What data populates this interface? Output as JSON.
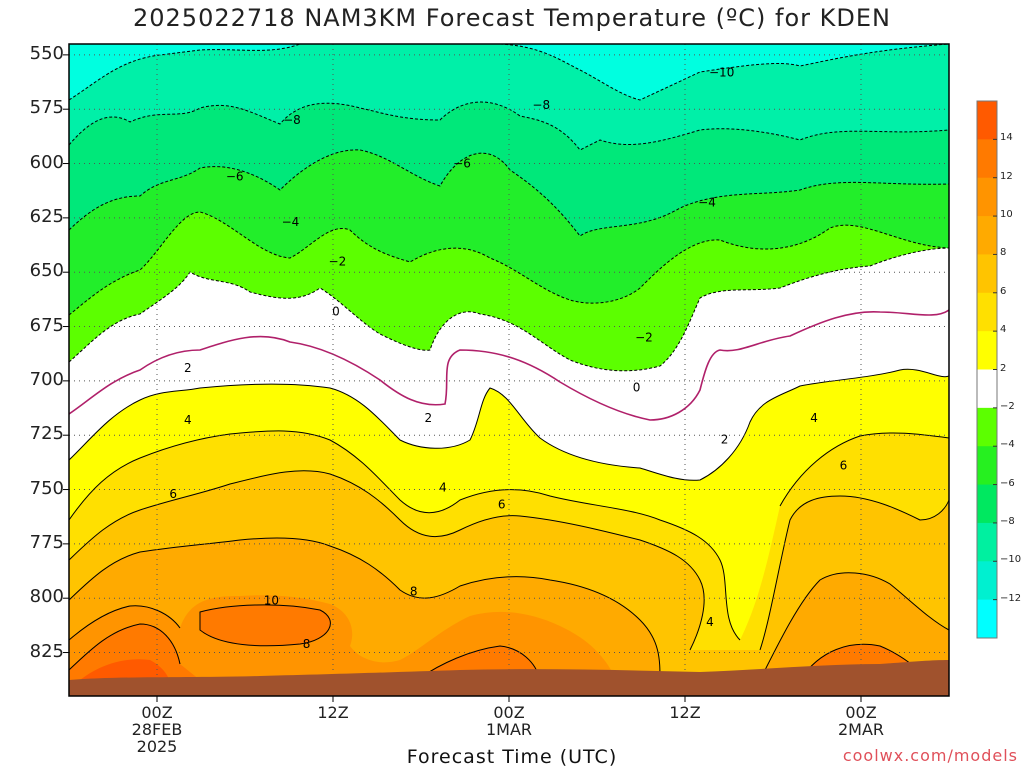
{
  "title": "2025022718 NAM3KM Forecast Temperature (ºC) for KDEN",
  "credit": "coolwx.com/models",
  "chart_data": {
    "type": "contour",
    "title": "2025022718 NAM3KM Forecast Temperature (ºC) for KDEN",
    "xlabel": "Forecast Time (UTC)",
    "ylabel": "",
    "y_axis_reversed": true,
    "ylim": [
      545,
      845
    ],
    "yticks": [
      "550",
      "575",
      "600",
      "625",
      "650",
      "675",
      "700",
      "725",
      "750",
      "775",
      "800",
      "825"
    ],
    "xticks": [
      {
        "hour": 6,
        "lines": [
          "00Z",
          "28FEB",
          "2025"
        ]
      },
      {
        "hour": 18,
        "lines": [
          "12Z"
        ]
      },
      {
        "hour": 30,
        "lines": [
          "00Z",
          "1MAR"
        ]
      },
      {
        "hour": 42,
        "lines": [
          "12Z"
        ]
      },
      {
        "hour": 54,
        "lines": [
          "00Z",
          "2MAR"
        ]
      }
    ],
    "xlim": [
      0,
      60
    ],
    "grid": true,
    "colorbar": {
      "labels": [
        "14",
        "12",
        "10",
        "8",
        "6",
        "4",
        "2",
        "−2",
        "−4",
        "−6",
        "−8",
        "−10",
        "−12"
      ],
      "colors": [
        "#ff5a00",
        "#ff7a00",
        "#ff9400",
        "#ffaa00",
        "#ffc400",
        "#ffe000",
        "#ffff00",
        "#ffffff",
        "#5cff00",
        "#26f020",
        "#00e860",
        "#00f0a0",
        "#00f0d0",
        "#00ffff"
      ]
    },
    "contour_labels": [
      {
        "value": "−10",
        "hour": 44.5,
        "pressure": 558
      },
      {
        "value": "−8",
        "hour": 15.2,
        "pressure": 580
      },
      {
        "value": "−8",
        "hour": 32.2,
        "pressure": 573
      },
      {
        "value": "−6",
        "hour": 11.3,
        "pressure": 606
      },
      {
        "value": "−6",
        "hour": 26.8,
        "pressure": 600
      },
      {
        "value": "−4",
        "hour": 15.1,
        "pressure": 627
      },
      {
        "value": "−4",
        "hour": 43.5,
        "pressure": 618
      },
      {
        "value": "−2",
        "hour": 18.3,
        "pressure": 645
      },
      {
        "value": "−2",
        "hour": 39.2,
        "pressure": 680
      },
      {
        "value": "0",
        "hour": 18.2,
        "pressure": 668
      },
      {
        "value": "0",
        "hour": 38.7,
        "pressure": 703
      },
      {
        "value": "2",
        "hour": 8.1,
        "pressure": 694
      },
      {
        "value": "2",
        "hour": 24.5,
        "pressure": 717
      },
      {
        "value": "2",
        "hour": 44.7,
        "pressure": 727
      },
      {
        "value": "4",
        "hour": 8.1,
        "pressure": 718
      },
      {
        "value": "4",
        "hour": 25.5,
        "pressure": 749
      },
      {
        "value": "4",
        "hour": 43.7,
        "pressure": 811
      },
      {
        "value": "4",
        "hour": 50.8,
        "pressure": 717
      },
      {
        "value": "6",
        "hour": 7.1,
        "pressure": 752
      },
      {
        "value": "6",
        "hour": 29.5,
        "pressure": 757
      },
      {
        "value": "6",
        "hour": 52.8,
        "pressure": 739
      },
      {
        "value": "8",
        "hour": 23.5,
        "pressure": 797
      },
      {
        "value": "8",
        "hour": 16.2,
        "pressure": 821
      },
      {
        "value": "10",
        "hour": 13.8,
        "pressure": 801
      }
    ]
  }
}
